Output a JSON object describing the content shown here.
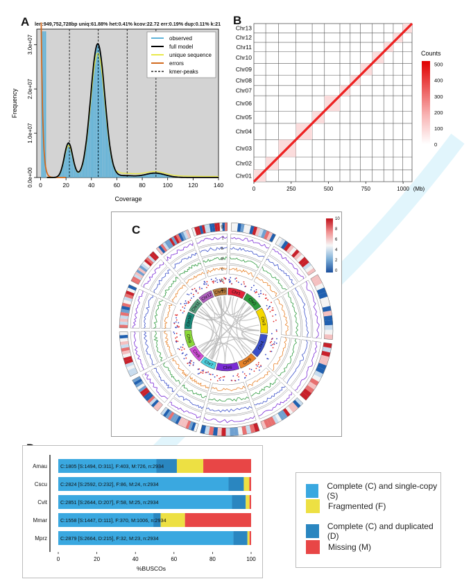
{
  "panels": [
    "A",
    "B",
    "C",
    "D"
  ],
  "panelA": {
    "stats": "len:949,752,728bp uniq:61.88% het:0.41% kcov:22.72 err:0.19% dup:0.11% k:21",
    "xlabel": "Coverage",
    "ylabel": "Frequency",
    "x_ticks": [
      "0",
      "20",
      "40",
      "60",
      "80",
      "100",
      "120",
      "140"
    ],
    "y_ticks": [
      "0.0e+00",
      "1.0e+07",
      "2.0e+07",
      "3.0e+07"
    ],
    "legend": [
      "observed",
      "full model",
      "unique sequence",
      "errors",
      "kmer-peaks"
    ],
    "colors": {
      "observed": "#5fb2d8",
      "full_model": "#000000",
      "unique": "#e8e84a",
      "errors": "#d2691e",
      "bg": "#d3d3d3"
    }
  },
  "panelB": {
    "chromosomes": [
      "Chr01",
      "Chr02",
      "Chr03",
      "Chr04",
      "Chr05",
      "Chr06",
      "Chr07",
      "Chr08",
      "Chr09",
      "Chr10",
      "Chr11",
      "Chr12",
      "Chr13"
    ],
    "x_ticks": [
      "0",
      "250",
      "500",
      "750",
      "1000"
    ],
    "unit": "(Mb)",
    "colorbar_title": "Counts",
    "colorbar_ticks": [
      "500",
      "400",
      "300",
      "200",
      "100",
      "0"
    ]
  },
  "panelC": {
    "chromosomes": [
      "Chr1",
      "Chr2",
      "Chr3",
      "Chr4",
      "Chr5",
      "Chr6",
      "Chr7",
      "Chr8",
      "Chr9",
      "Chr10",
      "Chr11",
      "Chr12",
      "Chr13"
    ],
    "chr_colors": [
      "#e4243b",
      "#2e9a3e",
      "#f5d800",
      "#3a4fc9",
      "#e8832a",
      "#7a2bd6",
      "#4fd1e0",
      "#d04fd8",
      "#8bd83a",
      "#1a8a7a",
      "#5aa080",
      "#b060c0",
      "#b87a3a"
    ],
    "track_labels": [
      "g",
      "f",
      "e",
      "d",
      "c",
      "b",
      "a"
    ],
    "colorbar_ticks": [
      "10",
      "8",
      "6",
      "4",
      "2",
      "0"
    ]
  },
  "chart_data": {
    "type": "bar",
    "orientation": "horizontal",
    "stacked": true,
    "categories": [
      "Amau",
      "Cscu",
      "Cvit",
      "Mmar",
      "Mprz"
    ],
    "xlabel": "%BUSCOs",
    "x_ticks": [
      "0",
      "20",
      "40",
      "60",
      "80",
      "100"
    ],
    "xlim": [
      0,
      100
    ],
    "labels": [
      "C:1805 [S:1494, D:311], F:403, M:726, n:2934",
      "C:2824 [S:2592, D:232], F:86, M:24, n:2934",
      "C:2851 [S:2644, D:207], F:58, M:25, n:2934",
      "C:1558 [S:1447, D:111], F:370, M:1006, n:2934",
      "C:2879 [S:2664, D:215], F:32, M:23, n:2934"
    ],
    "series": [
      {
        "name": "Complete (C) and single-copy (S)",
        "color": "#3aa8e0",
        "values": [
          50.9,
          88.3,
          90.1,
          49.3,
          90.8
        ]
      },
      {
        "name": "Complete (C) and duplicated (D)",
        "color": "#2a86c0",
        "values": [
          10.6,
          7.9,
          7.1,
          3.8,
          7.3
        ]
      },
      {
        "name": "Fragmented (F)",
        "color": "#ede043",
        "values": [
          13.7,
          2.9,
          2.0,
          12.6,
          1.1
        ]
      },
      {
        "name": "Missing (M)",
        "color": "#e84646",
        "values": [
          24.8,
          0.9,
          0.8,
          34.3,
          0.8
        ]
      }
    ],
    "legend": [
      "Complete (C) and single-copy (S)",
      "Fragmented (F)",
      "Complete (C) and duplicated (D)",
      "Missing (M)"
    ]
  }
}
